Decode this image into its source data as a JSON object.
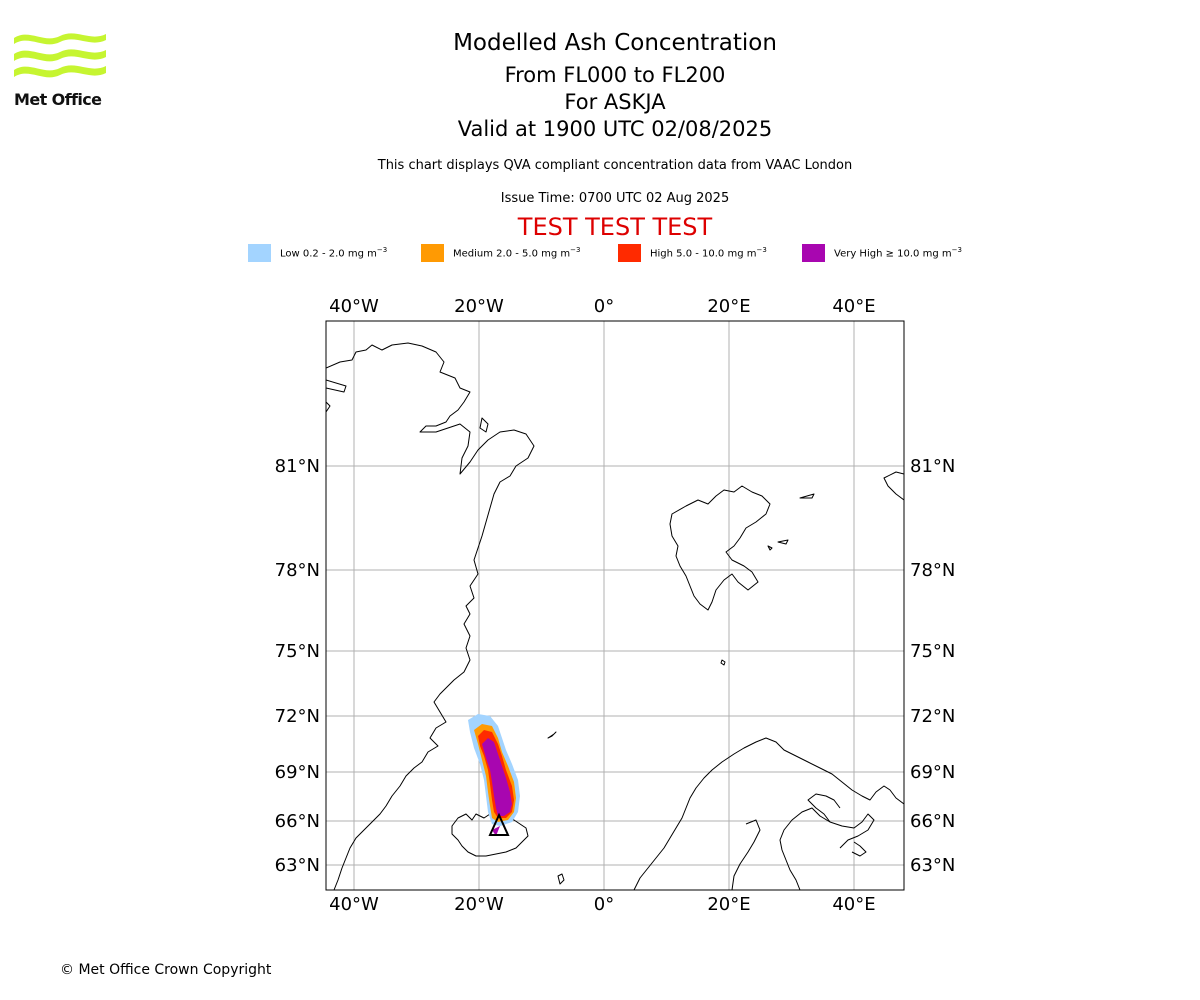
{
  "header": {
    "title": "Modelled Ash Concentration",
    "levels": "From FL000 to FL200",
    "volcano": "For ASKJA",
    "valid": "Valid at 1900 UTC 02/08/2025",
    "description": "This chart displays QVA compliant concentration data from VAAC London",
    "issue_time": "Issue Time: 0700 UTC 02 Aug 2025",
    "test_banner": "TEST TEST TEST",
    "test_color": "#dd0000"
  },
  "logo": {
    "text": "Met Office",
    "color": "#c6f531",
    "icon": "met-office-wave-logo"
  },
  "legend": [
    {
      "prefix": "Low 0.2 - 2.0 mg m",
      "unit_exp": "−3",
      "color": "#a3d4ff"
    },
    {
      "prefix": "Medium 2.0 - 5.0 mg m",
      "unit_exp": "−3",
      "color": "#ff9a03"
    },
    {
      "prefix": "High 5.0 - 10.0 mg m",
      "unit_exp": "−3",
      "color": "#ff2a00"
    },
    {
      "prefix": "Very High ≥ 10.0 mg m",
      "unit_exp": "−3",
      "color": "#a806b0"
    }
  ],
  "map": {
    "lon_ticks": [
      "40°W",
      "20°W",
      "0°",
      "20°E",
      "40°E"
    ],
    "lat_ticks": [
      "81°N",
      "78°N",
      "75°N",
      "72°N",
      "69°N",
      "66°N",
      "63°N"
    ],
    "gridlines": true,
    "volcano_marker": "triangle-icon"
  },
  "footer": {
    "copyright": "© Met Office Crown Copyright"
  }
}
